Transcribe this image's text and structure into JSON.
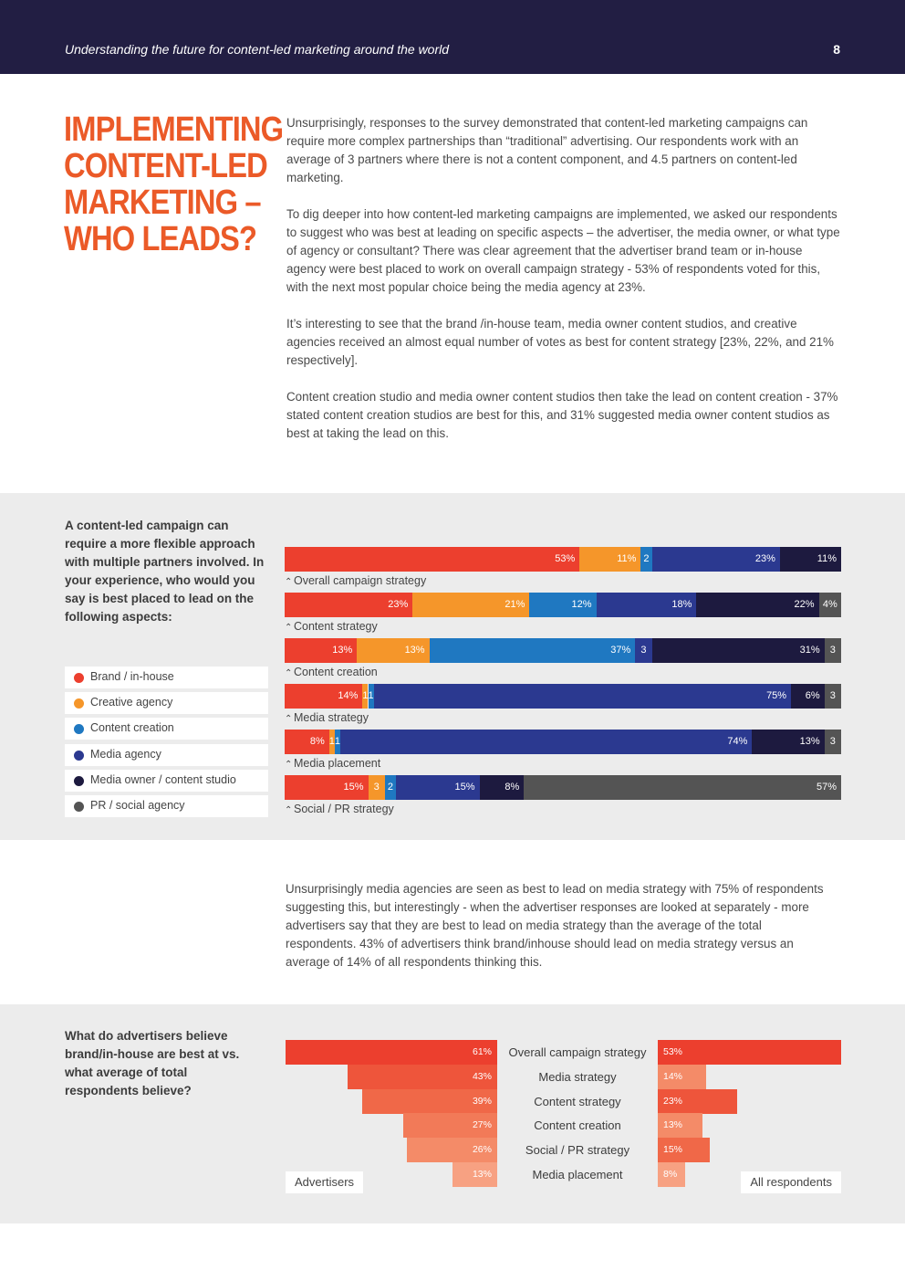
{
  "header": {
    "title": "Understanding the future for content-led marketing around the world",
    "page_number": "8"
  },
  "heading": {
    "lines": [
      "IMPLEMENTING",
      "CONTENT-LED",
      "MARKETING –",
      "WHO LEADS?"
    ]
  },
  "intro_paragraphs": [
    "Unsurprisingly, responses to the survey demonstrated that content-led marketing campaigns can require more complex partnerships than “traditional” advertising.  Our respondents work with an average of 3 partners where there is not a content component, and 4.5 partners on content-led marketing.",
    "To dig deeper into how content-led marketing campaigns are implemented, we asked our respondents to suggest who was best at leading on specific aspects – the advertiser, the media owner, or what type of agency or consultant?  There was clear agreement that the advertiser brand team or in-house agency were best placed to work on overall campaign strategy - 53% of respondents voted for this, with the next most popular choice being the media agency at 23%.",
    "It’s interesting to see that the brand /in-house team, media owner content studios, and creative agencies received an almost equal number of votes as best for content strategy [23%, 22%, and 21% respectively].",
    "Content creation studio and media owner content studios then take the lead on content creation - 37% stated content creation studios are best for this, and 31% suggested media owner content studios as best at taking the lead on this."
  ],
  "section1": {
    "question": "A content-led campaign can require a more flexible approach with multiple partners involved. In your experience, who would you say is best placed to lead on the following aspects:"
  },
  "mid_paragraph": "Unsurprisingly media agencies are seen as best to lead on media strategy with 75% of respondents suggesting this, but interestingly - when the advertiser responses are looked at separately - more advertisers say that they are best to lead on media strategy than the average of the total respondents. 43% of advertisers think brand/inhouse should lead on media strategy versus an average of 14% of all respondents thinking this.",
  "section2": {
    "question": "What do advertisers believe brand/in-house are best at vs. what average of total respondents believe?"
  },
  "chart_data": [
    {
      "type": "bar",
      "stacked": true,
      "orientation": "horizontal",
      "categories": [
        "Overall campaign strategy",
        "Content strategy",
        "Content creation",
        "Media strategy",
        "Media placement",
        "Social / PR strategy"
      ],
      "series": [
        {
          "name": "Brand / in-house",
          "color": "#ec3f2e",
          "values": [
            53,
            23,
            13,
            14,
            8,
            15
          ],
          "labels": [
            "53%",
            "23%",
            "13%",
            "14%",
            "8%",
            "15%"
          ]
        },
        {
          "name": "Creative agency",
          "color": "#f5962a",
          "values": [
            11,
            21,
            13,
            1,
            1,
            3
          ],
          "labels": [
            "11%",
            "21%",
            "13%",
            "1",
            "1",
            "3"
          ]
        },
        {
          "name": "Content creation",
          "color": "#1f78c1",
          "values": [
            2,
            12,
            37,
            1,
            1,
            2
          ],
          "labels": [
            "2",
            "12%",
            "37%",
            "1",
            "1",
            "2"
          ]
        },
        {
          "name": "Media agency",
          "color": "#2b3990",
          "values": [
            23,
            18,
            3,
            75,
            74,
            15
          ],
          "labels": [
            "23%",
            "18%",
            "3",
            "75%",
            "74%",
            "15%"
          ]
        },
        {
          "name": "Media owner / content studio",
          "color": "#1d1a3f",
          "values": [
            11,
            22,
            31,
            6,
            13,
            8
          ],
          "labels": [
            "11%",
            "22%",
            "31%",
            "6%",
            "13%",
            "8%"
          ]
        },
        {
          "name": "PR / social agency",
          "color": "#545454",
          "values": [
            0,
            4,
            3,
            3,
            3,
            57
          ],
          "labels": [
            "",
            "4%",
            "3",
            "3",
            "3",
            "57%"
          ]
        }
      ],
      "xlim": [
        0,
        100
      ]
    },
    {
      "type": "bar",
      "orientation": "horizontal",
      "categories": [
        "Overall campaign strategy",
        "Media strategy",
        "Content strategy",
        "Content creation",
        "Social / PR strategy",
        "Media placement"
      ],
      "series": [
        {
          "name": "Advertisers",
          "values": [
            61,
            43,
            39,
            27,
            26,
            13
          ],
          "labels": [
            "61%",
            "43%",
            "39%",
            "27%",
            "26%",
            "13%"
          ],
          "colors": [
            "#ec3f2e",
            "#ee553b",
            "#f06848",
            "#f27a58",
            "#f48b68",
            "#f7a182"
          ]
        },
        {
          "name": "All respondents",
          "values": [
            53,
            14,
            23,
            13,
            15,
            8
          ],
          "labels": [
            "53%",
            "14%",
            "23%",
            "13%",
            "15%",
            "8%"
          ],
          "colors": [
            "#ec3f2e",
            "#f48b68",
            "#ee553b",
            "#f48b68",
            "#f06848",
            "#f7a182"
          ]
        }
      ],
      "xlim": [
        0,
        61
      ]
    }
  ]
}
